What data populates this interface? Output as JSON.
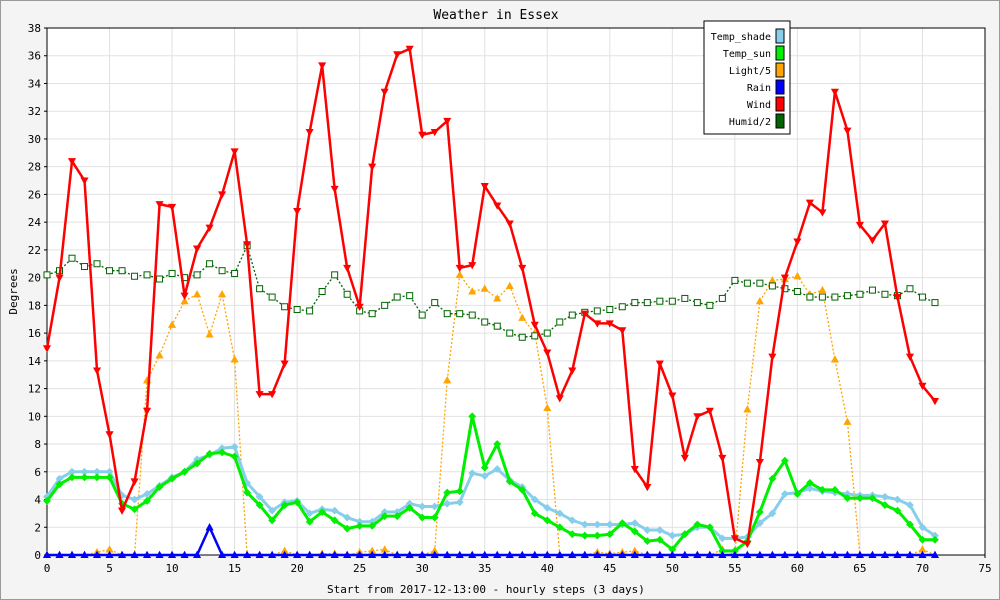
{
  "chart_data": {
    "type": "line",
    "title": "Weather in Essex",
    "xlabel": "Start from 2017-12-13:00 - hourly steps (3 days)",
    "ylabel": "Degrees",
    "xlim": [
      0,
      75
    ],
    "ylim": [
      0,
      38
    ],
    "xticks": [
      0,
      5,
      10,
      15,
      20,
      25,
      30,
      35,
      40,
      45,
      50,
      55,
      60,
      65,
      70,
      75
    ],
    "yticks": [
      0,
      2,
      4,
      6,
      8,
      10,
      12,
      14,
      16,
      18,
      20,
      22,
      24,
      26,
      28,
      30,
      32,
      34,
      36,
      38
    ],
    "grid": true,
    "legend_position": "top-right",
    "x": [
      0,
      1,
      2,
      3,
      4,
      5,
      6,
      7,
      8,
      9,
      10,
      11,
      12,
      13,
      14,
      15,
      16,
      17,
      18,
      19,
      20,
      21,
      22,
      23,
      24,
      25,
      26,
      27,
      28,
      29,
      30,
      31,
      32,
      33,
      34,
      35,
      36,
      37,
      38,
      39,
      40,
      41,
      42,
      43,
      44,
      45,
      46,
      47,
      48,
      49,
      50,
      51,
      52,
      53,
      54,
      55,
      56,
      57,
      58,
      59,
      60,
      61,
      62,
      63,
      64,
      65,
      66,
      67,
      68,
      69,
      70,
      71
    ],
    "series": [
      {
        "name": "Temp_shade",
        "color": "#87ceeb",
        "marker": "diamond",
        "values": [
          4.2,
          5.5,
          6.0,
          6.0,
          6.0,
          6.0,
          4.3,
          4.0,
          4.4,
          5.0,
          5.6,
          6.0,
          6.9,
          7.2,
          7.7,
          7.8,
          5.2,
          4.2,
          3.2,
          3.8,
          3.9,
          3.0,
          3.3,
          3.2,
          2.7,
          2.4,
          2.4,
          3.1,
          3.1,
          3.7,
          3.5,
          3.5,
          3.7,
          3.8,
          5.9,
          5.7,
          6.2,
          5.4,
          4.9,
          4.0,
          3.4,
          3.0,
          2.5,
          2.2,
          2.2,
          2.2,
          2.2,
          2.3,
          1.8,
          1.8,
          1.4,
          1.5,
          2.0,
          2.0,
          1.2,
          1.2,
          1.3,
          2.3,
          3.0,
          4.4,
          4.5,
          4.8,
          4.6,
          4.5,
          4.4,
          4.3,
          4.3,
          4.2,
          4.0,
          3.6,
          2.0,
          1.4
        ]
      },
      {
        "name": "Temp_sun",
        "color": "#00ee00",
        "marker": "diamond",
        "values": [
          3.9,
          5.1,
          5.6,
          5.6,
          5.6,
          5.6,
          3.7,
          3.3,
          3.9,
          4.9,
          5.5,
          6.0,
          6.6,
          7.3,
          7.4,
          7.1,
          4.5,
          3.6,
          2.5,
          3.6,
          3.8,
          2.4,
          3.1,
          2.5,
          1.9,
          2.1,
          2.1,
          2.8,
          2.8,
          3.4,
          2.7,
          2.7,
          4.5,
          4.6,
          10.0,
          6.3,
          8.0,
          5.3,
          4.7,
          3.0,
          2.5,
          2.0,
          1.5,
          1.4,
          1.4,
          1.5,
          2.3,
          1.7,
          1.0,
          1.1,
          0.4,
          1.5,
          2.2,
          2.0,
          0.3,
          0.3,
          1.0,
          3.1,
          5.5,
          6.8,
          4.4,
          5.2,
          4.7,
          4.7,
          4.1,
          4.1,
          4.1,
          3.6,
          3.2,
          2.2,
          1.1,
          1.1
        ]
      },
      {
        "name": "Light/5",
        "color": "#ffa500",
        "marker": "triangle",
        "values": [
          0,
          0,
          0,
          0,
          0.2,
          0.4,
          0,
          0,
          12.6,
          14.4,
          16.6,
          18.3,
          18.8,
          15.9,
          18.8,
          14.1,
          0,
          0,
          0,
          0.3,
          0,
          0,
          0.1,
          0.1,
          0,
          0.2,
          0.3,
          0.4,
          0,
          0,
          0,
          0.3,
          12.6,
          20.2,
          19.0,
          19.2,
          18.5,
          19.4,
          17.1,
          16.0,
          10.6,
          0,
          0,
          0,
          0.2,
          0.1,
          0.2,
          0.3,
          0,
          0,
          0,
          0,
          0,
          0,
          0.4,
          0,
          10.5,
          18.3,
          19.8,
          19.9,
          20.1,
          18.8,
          19.1,
          14.1,
          9.6,
          0,
          0,
          0,
          0,
          0,
          0.4,
          0
        ]
      },
      {
        "name": "Rain",
        "color": "#0000ff",
        "marker": "triangle",
        "values": [
          0,
          0,
          0,
          0,
          0,
          0,
          0,
          0,
          0,
          0,
          0,
          0,
          0,
          2.0,
          0,
          0,
          0,
          0,
          0,
          0,
          0,
          0,
          0,
          0,
          0,
          0,
          0,
          0,
          0,
          0,
          0,
          0,
          0,
          0,
          0,
          0,
          0,
          0,
          0,
          0,
          0,
          0,
          0,
          0,
          0,
          0,
          0,
          0,
          0,
          0,
          0,
          0,
          0,
          0,
          0,
          0,
          0,
          0,
          0,
          0,
          0,
          0,
          0,
          0,
          0,
          0,
          0,
          0,
          0,
          0,
          0,
          0
        ]
      },
      {
        "name": "Wind",
        "color": "#ff0000",
        "marker": "triangle-down",
        "values": [
          14.9,
          20.0,
          28.4,
          27.0,
          13.3,
          8.7,
          3.2,
          5.3,
          10.4,
          25.3,
          25.1,
          18.7,
          22.1,
          23.6,
          26.0,
          29.1,
          22.4,
          11.6,
          11.6,
          13.8,
          24.8,
          30.5,
          35.3,
          26.4,
          20.7,
          17.9,
          28.0,
          33.4,
          36.1,
          36.5,
          30.3,
          30.5,
          31.3,
          20.7,
          20.9,
          26.6,
          25.2,
          23.9,
          20.7,
          16.6,
          14.6,
          11.3,
          13.3,
          17.4,
          16.7,
          16.7,
          16.2,
          6.2,
          4.9,
          13.8,
          11.5,
          7.0,
          10.0,
          10.4,
          7.0,
          1.2,
          0.8,
          6.7,
          14.3,
          20.0,
          22.6,
          25.4,
          24.7,
          33.4,
          30.6,
          23.8,
          22.7,
          23.9,
          18.6,
          14.3,
          12.2,
          11.1
        ]
      },
      {
        "name": "Humid/2",
        "color": "#006400",
        "marker": "square",
        "values": [
          20.2,
          20.5,
          21.4,
          20.8,
          21.0,
          20.5,
          20.5,
          20.1,
          20.2,
          19.9,
          20.3,
          20.0,
          20.2,
          21.0,
          20.5,
          20.3,
          22.3,
          19.2,
          18.6,
          17.9,
          17.7,
          17.6,
          19.0,
          20.2,
          18.8,
          17.6,
          17.4,
          18.0,
          18.6,
          18.7,
          17.3,
          18.2,
          17.4,
          17.4,
          17.3,
          16.8,
          16.5,
          16.0,
          15.7,
          15.8,
          16.0,
          16.8,
          17.3,
          17.5,
          17.6,
          17.7,
          17.9,
          18.2,
          18.2,
          18.3,
          18.3,
          18.5,
          18.2,
          18.0,
          18.5,
          19.8,
          19.6,
          19.6,
          19.4,
          19.2,
          19.0,
          18.6,
          18.6,
          18.6,
          18.7,
          18.8,
          19.1,
          18.8,
          18.7,
          19.2,
          18.6,
          18.2
        ]
      }
    ]
  }
}
